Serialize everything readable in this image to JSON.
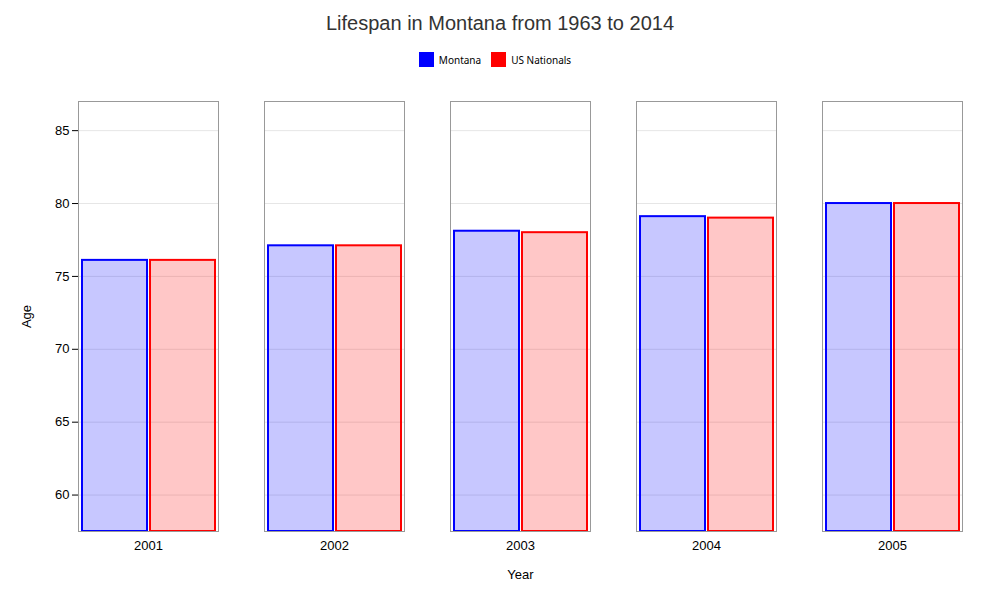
{
  "chart_data": {
    "type": "bar",
    "title": "Lifespan in Montana from 1963 to 2014",
    "x_label": "Year",
    "y_label": "Age",
    "categories": [
      "2001",
      "2002",
      "2003",
      "2004",
      "2005"
    ],
    "series": [
      {
        "name": "Montana",
        "color": "#0000ff",
        "values": [
          76.1,
          77.1,
          78.1,
          79.1,
          80.0
        ]
      },
      {
        "name": "US Nationals",
        "color": "#ff0000",
        "values": [
          76.1,
          77.1,
          78.0,
          79.0,
          80.0
        ]
      }
    ],
    "ylim": [
      57.5,
      87
    ],
    "yticks": [
      60,
      65,
      70,
      75,
      80,
      85
    ],
    "grid": true,
    "legend": "top"
  }
}
